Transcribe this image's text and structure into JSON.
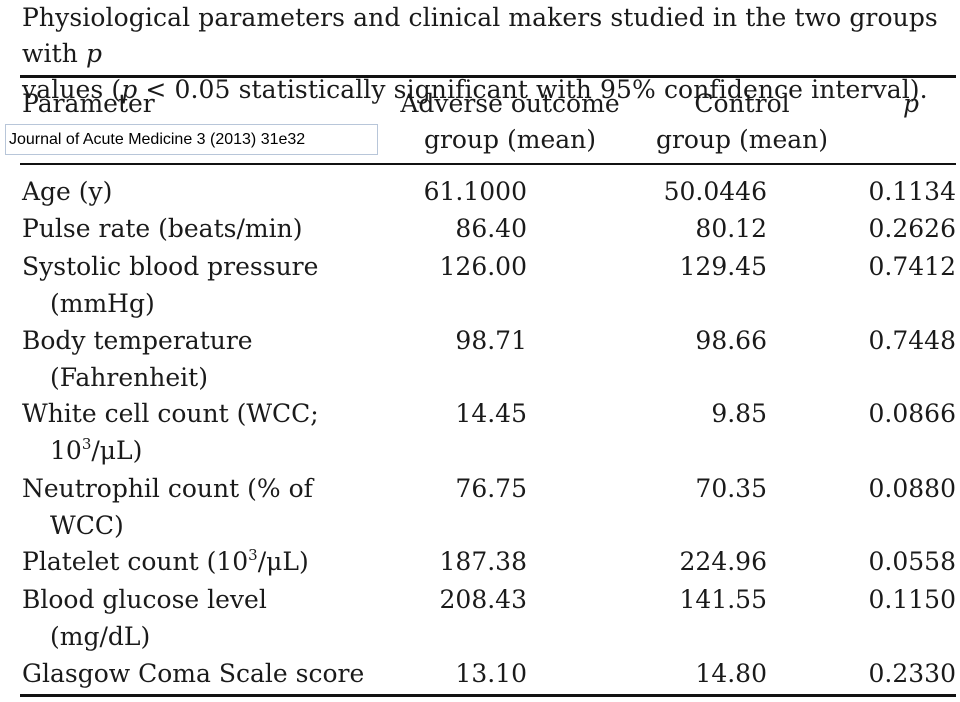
{
  "caption": {
    "line1_pre": "Physiological parameters and clinical makers studied in the two groups with ",
    "line1_p": "p",
    "line2_pre": "values (",
    "line2_p": "p",
    "line2_post": " < 0.05 statistically significant with 95% confidence interval)."
  },
  "overlay_text": "Journal of Acute Medicine 3 (2013) 31e32",
  "headers": {
    "parameter": "Parameter",
    "adverse_line1": "Adverse outcome",
    "adverse_line2": "group (mean)",
    "control_line1": "Control",
    "control_line2": "group (mean)",
    "p": "p"
  },
  "rows": [
    {
      "name": "Age (y)",
      "name2": "",
      "adverse": "61.1000",
      "control": "50.0446",
      "p": "0.1134"
    },
    {
      "name": "Pulse rate (beats/min)",
      "name2": "",
      "adverse": "86.40",
      "control": "80.12",
      "p": "0.2626"
    },
    {
      "name": "Systolic blood pressure",
      "name2": "(mmHg)",
      "adverse": "126.00",
      "control": "129.45",
      "p": "0.7412"
    },
    {
      "name": "Body temperature",
      "name2": "(Fahrenheit)",
      "adverse": "98.71",
      "control": "98.66",
      "p": "0.7448"
    },
    {
      "name": "White cell count (WCC;",
      "name2_base": "10",
      "name2_sup": "3",
      "name2_rest": "/μL)",
      "adverse": "14.45",
      "control": "9.85",
      "p": "0.0866"
    },
    {
      "name": "Neutrophil count (% of",
      "name2": "WCC)",
      "adverse": "76.75",
      "control": "70.35",
      "p": "0.0880"
    },
    {
      "name_base": "Platelet count (10",
      "name_sup": "3",
      "name_rest": "/μL)",
      "adverse": "187.38",
      "control": "224.96",
      "p": "0.0558"
    },
    {
      "name": "Blood glucose level",
      "name2": "(mg/dL)",
      "adverse": "208.43",
      "control": "141.55",
      "p": "0.1150"
    },
    {
      "name": "Glasgow Coma Scale score",
      "name2": "",
      "adverse": "13.10",
      "control": "14.80",
      "p": "0.2330"
    }
  ]
}
